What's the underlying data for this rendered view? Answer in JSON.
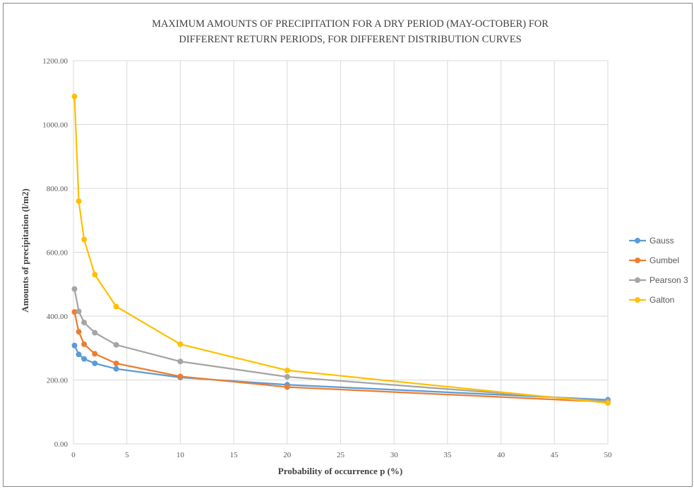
{
  "chart_data": {
    "type": "line",
    "title": "MAXIMUM AMOUNTS OF PRECIPITATION FOR A DRY PERIOD (MAY-OCTOBER) FOR DIFFERENT RETURN PERIODS, FOR DIFFERENT DISTRIBUTION CURVES",
    "title_lines": [
      "MAXIMUM AMOUNTS OF PRECIPITATION FOR A DRY PERIOD (MAY-OCTOBER) FOR",
      "DIFFERENT RETURN PERIODS, FOR DIFFERENT DISTRIBUTION CURVES"
    ],
    "xlabel": "Probability  of occurrence p  (%)",
    "ylabel": "Amounts of precipitation  (l/m2)",
    "xlim": [
      0,
      50
    ],
    "ylim": [
      0,
      1200
    ],
    "x_ticks": [
      0,
      5,
      10,
      15,
      20,
      25,
      30,
      35,
      40,
      45,
      50
    ],
    "x_tick_labels": [
      "0",
      "5",
      "10",
      "15",
      "20",
      "25",
      "30",
      "35",
      "40",
      "45",
      "50"
    ],
    "y_ticks": [
      0,
      200,
      400,
      600,
      800,
      1000,
      1200
    ],
    "y_tick_labels": [
      "0.00",
      "200.00",
      "400.00",
      "600.00",
      "800.00",
      "1000.00",
      "1200.00"
    ],
    "grid": true,
    "legend_position": "right",
    "x": [
      0.1,
      0.5,
      1,
      2,
      4,
      10,
      20,
      50
    ],
    "series": [
      {
        "name": "Gauss",
        "color": "#5B9BD5",
        "values": [
          308,
          280,
          266,
          252,
          235,
          208,
          185,
          138
        ]
      },
      {
        "name": "Gumbel",
        "color": "#ED7D31",
        "values": [
          413,
          351,
          312,
          282,
          252,
          211,
          178,
          131
        ]
      },
      {
        "name": "Pearson 3",
        "color": "#A5A5A5",
        "values": [
          485,
          415,
          380,
          348,
          310,
          258,
          210,
          133
        ]
      },
      {
        "name": "Galton",
        "color": "#FFC000",
        "values": [
          1088,
          760,
          640,
          530,
          430,
          312,
          230,
          128
        ]
      }
    ]
  }
}
